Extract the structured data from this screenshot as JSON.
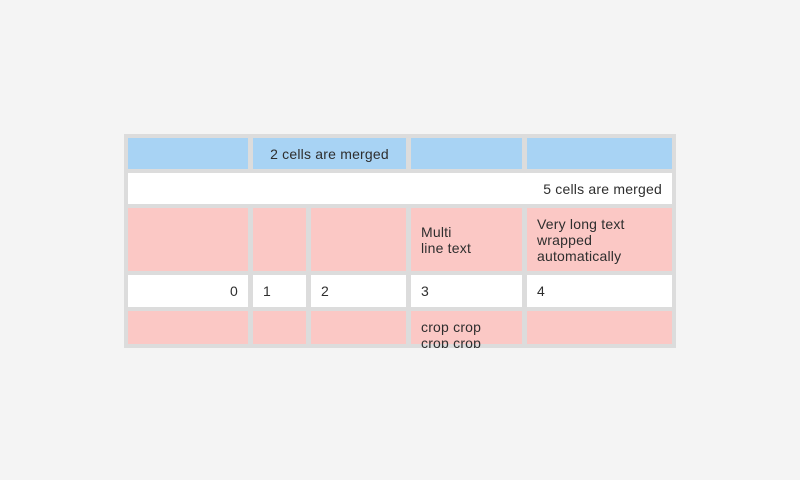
{
  "colors": {
    "page-bg": "#f4f4f4",
    "table-border": "#dcdcdc",
    "cell-blue": "#a8d3f4",
    "cell-pink": "#fbc8c5",
    "cell-white": "#ffffff",
    "text": "#2e2e2e"
  },
  "table": {
    "row1": {
      "merged_label": "2 cells are merged"
    },
    "row2": {
      "merged_label": "5 cells are merged"
    },
    "row3": {
      "multiline": "Multi\nline text",
      "wrapped": "Very long text wrapped automatically"
    },
    "row4": {
      "c0": "0",
      "c1": "1",
      "c2": "2",
      "c3": "3",
      "c4": "4"
    },
    "row5": {
      "crop": "crop crop crop crop"
    }
  }
}
